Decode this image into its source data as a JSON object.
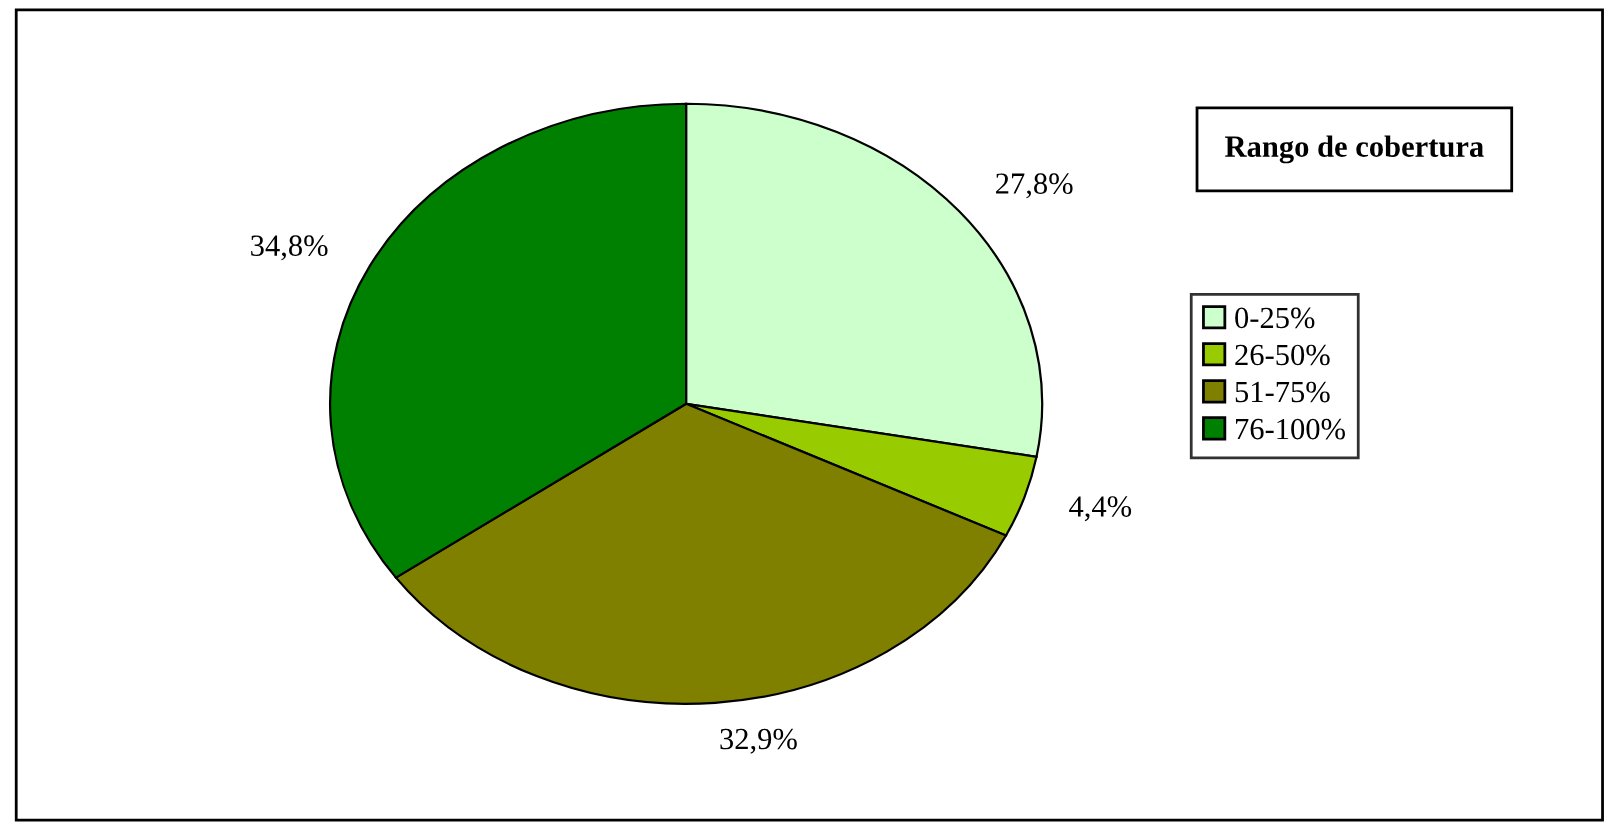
{
  "chart_data": {
    "type": "pie",
    "legend_title": "Rango de cobertura",
    "categories": [
      "0-25%",
      "26-50%",
      "51-75%",
      "76-100%"
    ],
    "values": [
      27.8,
      4.4,
      32.9,
      34.8
    ],
    "colors": [
      "#ccffcc",
      "#99cc00",
      "#808000",
      "#008000"
    ],
    "value_labels": [
      "27,8%",
      "4,4%",
      "32,9%",
      "34,8%"
    ],
    "legend": "right"
  }
}
